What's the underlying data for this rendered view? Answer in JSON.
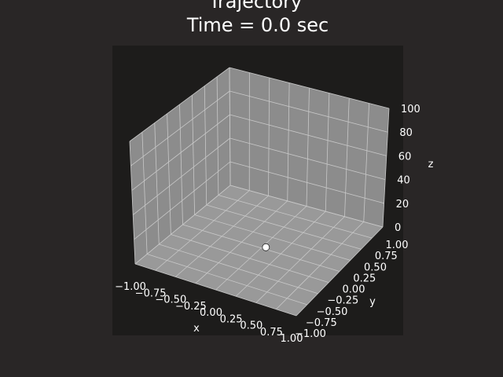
{
  "chart_data": {
    "type": "scatter",
    "title": "Trajectory",
    "subtitle": "Time = 0.0 sec",
    "xlabel": "x",
    "ylabel": "y",
    "zlabel": "z",
    "xlim": [
      -1.0,
      1.0
    ],
    "ylim": [
      -1.0,
      1.0
    ],
    "zlim": [
      0,
      100
    ],
    "x_ticks": [
      "−1.00",
      "−0.75",
      "−0.50",
      "−0.25",
      "0.00",
      "0.25",
      "0.50",
      "0.75",
      "1.00"
    ],
    "y_ticks": [
      "−1.00",
      "−0.75",
      "−0.50",
      "−0.25",
      "0.00",
      "0.25",
      "0.50",
      "0.75",
      "1.00"
    ],
    "z_ticks": [
      "0",
      "20",
      "40",
      "60",
      "80",
      "100"
    ],
    "grid": true,
    "points": [
      {
        "x": 0.0,
        "y": 0.0,
        "z": 0.0
      }
    ],
    "colors": {
      "figure_bg": "#292626",
      "axes_bg": "#1d1c1b",
      "pane": "#8c8c8c",
      "floor": "#999999",
      "grid": "#c8c8c8",
      "marker": "#ffffff",
      "text": "#ffffff"
    }
  }
}
